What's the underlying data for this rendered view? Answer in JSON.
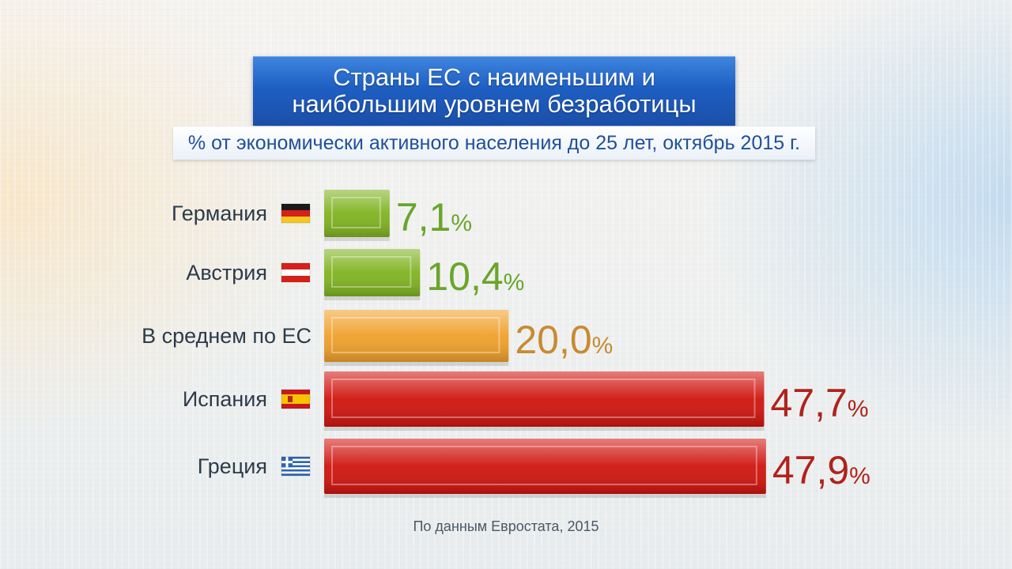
{
  "chart_data": {
    "type": "bar",
    "orientation": "horizontal",
    "title": "Страны ЕС с наименьшим и наибольшим уровнем безработицы",
    "subtitle": "% от экономически активного населения  до 25 лет,  октябрь 2015 г.",
    "categories": [
      "Германия",
      "Австрия",
      "В среднем по ЕС",
      "Испания",
      "Греция"
    ],
    "values": [
      7.1,
      10.4,
      20.0,
      47.7,
      47.9
    ],
    "value_labels": [
      "7,1",
      "10,4",
      "20,0",
      "47,7",
      "47,9"
    ],
    "value_suffix": "%",
    "bar_colors": [
      "#7fb320",
      "#7fb320",
      "#f0a02a",
      "#d0140e",
      "#d0140e"
    ],
    "label_colors": [
      "#6aa52a",
      "#6aa52a",
      "#c98a30",
      "#b0231b",
      "#b0231b"
    ],
    "flags": [
      "germany-flag",
      "austria-flag",
      "",
      "spain-flag",
      "greece-flag"
    ],
    "xlim": [
      0,
      48
    ],
    "grid": false,
    "legend": "none"
  },
  "source": "По данным Евростата, 2015"
}
